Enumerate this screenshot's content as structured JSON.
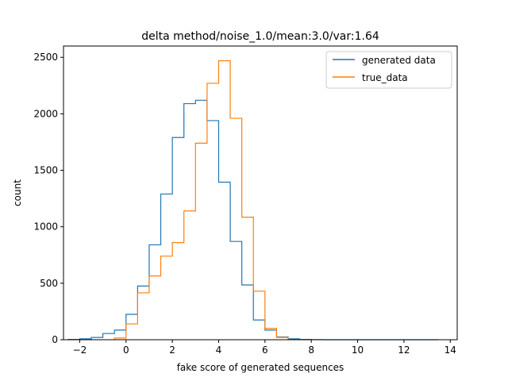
{
  "chart_data": {
    "type": "histogram-step",
    "title": "delta method/noise_1.0/mean:3.0/var:1.64",
    "xlabel": "fake score of generated sequences",
    "ylabel": "count",
    "xlim": [
      -2.7,
      14.3
    ],
    "ylim": [
      0,
      2600
    ],
    "xticks": [
      -2,
      0,
      2,
      4,
      6,
      8,
      10,
      12,
      14
    ],
    "xtick_labels": [
      "−2",
      "0",
      "2",
      "4",
      "6",
      "8",
      "10",
      "12",
      "14"
    ],
    "yticks": [
      0,
      500,
      1000,
      1500,
      2000,
      2500
    ],
    "ytick_labels": [
      "0",
      "500",
      "1000",
      "1500",
      "2000",
      "2500"
    ],
    "legend_position": "top-right",
    "series": [
      {
        "name": "generated data",
        "color": "#1f77b4",
        "edges": [
          -2.5,
          -2.0,
          -1.5,
          -1.0,
          -0.5,
          0.0,
          0.5,
          1.0,
          1.5,
          2.0,
          2.5,
          3.0,
          3.5,
          4.0,
          4.5,
          5.0,
          5.5,
          6.0,
          6.5,
          7.0,
          7.5,
          8.0,
          8.5,
          9.0,
          9.5,
          10.0,
          10.5,
          11.0,
          11.5,
          12.0,
          12.5,
          13.0,
          13.5
        ],
        "counts": [
          3,
          8,
          20,
          55,
          85,
          225,
          475,
          840,
          1290,
          1790,
          2090,
          2120,
          1940,
          1395,
          870,
          485,
          175,
          85,
          25,
          8,
          3,
          1,
          0,
          0,
          0,
          0,
          0,
          0,
          0,
          0,
          0,
          0
        ]
      },
      {
        "name": "true_data",
        "color": "#ff7f0e",
        "edges": [
          -0.5,
          0.0,
          0.5,
          1.0,
          1.5,
          2.0,
          2.5,
          3.0,
          3.5,
          4.0,
          4.5,
          5.0,
          5.5,
          6.0,
          6.5,
          7.0
        ],
        "counts": [
          15,
          140,
          415,
          565,
          740,
          860,
          1140,
          1740,
          2270,
          2470,
          1960,
          1085,
          430,
          100,
          20
        ]
      }
    ]
  }
}
